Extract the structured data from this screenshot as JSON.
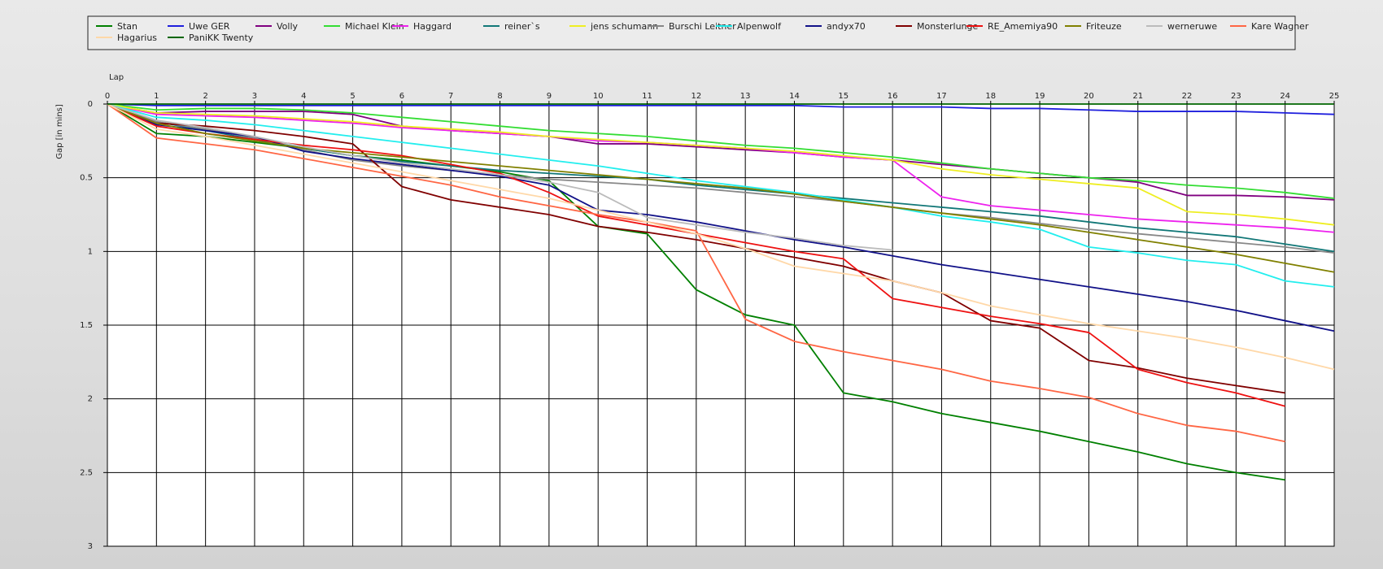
{
  "chart_data": {
    "type": "line",
    "title": "",
    "xlabel": "Lap",
    "ylabel": "Gap [in mins]",
    "xlim": [
      0,
      25
    ],
    "ylim": [
      0,
      3
    ],
    "y_inverted": true,
    "grid": true,
    "legend_position": "top",
    "x_ticks": [
      "0",
      "1",
      "2",
      "3",
      "4",
      "5",
      "6",
      "7",
      "8",
      "9",
      "10",
      "11",
      "12",
      "13",
      "14",
      "15",
      "16",
      "17",
      "18",
      "19",
      "20",
      "21",
      "22",
      "23",
      "24",
      "25"
    ],
    "y_ticks": [
      "0",
      "0.5",
      "1",
      "1.5",
      "2",
      "2.5",
      "3"
    ],
    "x": [
      0,
      1,
      2,
      3,
      4,
      5,
      6,
      7,
      8,
      9,
      10,
      11,
      12,
      13,
      14,
      15,
      16,
      17,
      18,
      19,
      20,
      21,
      22,
      23,
      24,
      25
    ],
    "series": [
      {
        "name": "Stan",
        "color": "#008000",
        "values": [
          0,
          0.2,
          0.22,
          0.26,
          0.3,
          0.35,
          0.38,
          0.42,
          0.46,
          0.52,
          0.83,
          0.88,
          1.26,
          1.43,
          1.5,
          1.96,
          2.02,
          2.1,
          2.16,
          2.22,
          2.29,
          2.36,
          2.44,
          2.5,
          2.55,
          null
        ]
      },
      {
        "name": "Uwe GER",
        "color": "#1f1fdd",
        "values": [
          0,
          0.01,
          0.01,
          0.01,
          0.01,
          0.01,
          0.01,
          0.01,
          0.01,
          0.01,
          0.01,
          0.01,
          0.01,
          0.01,
          0.01,
          0.02,
          0.02,
          0.02,
          0.03,
          0.03,
          0.04,
          0.05,
          0.05,
          0.05,
          0.06,
          0.07
        ]
      },
      {
        "name": "Volly",
        "color": "#800080",
        "values": [
          0,
          0.06,
          0.05,
          0.05,
          0.05,
          0.07,
          0.15,
          0.18,
          0.2,
          0.22,
          0.27,
          0.27,
          0.29,
          0.31,
          0.33,
          0.36,
          0.38,
          0.41,
          0.44,
          0.47,
          0.5,
          0.53,
          0.62,
          0.62,
          0.63,
          0.65
        ]
      },
      {
        "name": "Michael Klein",
        "color": "#33dd33",
        "values": [
          0,
          0.04,
          0.03,
          0.03,
          0.04,
          0.06,
          0.09,
          0.12,
          0.15,
          0.18,
          0.2,
          0.22,
          0.25,
          0.28,
          0.3,
          0.33,
          0.36,
          0.4,
          0.44,
          0.47,
          0.5,
          0.52,
          0.55,
          0.57,
          0.6,
          0.64
        ]
      },
      {
        "name": "Haggard",
        "color": "#ee22ee",
        "values": [
          0,
          0.07,
          0.08,
          0.09,
          0.11,
          0.13,
          0.16,
          0.18,
          0.2,
          0.22,
          0.25,
          0.26,
          0.28,
          0.3,
          0.33,
          0.36,
          0.38,
          0.63,
          0.69,
          0.72,
          0.75,
          0.78,
          0.8,
          0.82,
          0.84,
          0.87
        ]
      },
      {
        "name": "reiner`s",
        "color": "#117777",
        "values": [
          0,
          0.12,
          0.18,
          0.24,
          0.3,
          0.35,
          0.39,
          0.42,
          0.45,
          0.47,
          0.49,
          0.51,
          0.55,
          0.58,
          0.61,
          0.64,
          0.67,
          0.7,
          0.73,
          0.76,
          0.8,
          0.84,
          0.87,
          0.9,
          0.95,
          1.0
        ]
      },
      {
        "name": "jens  schumann",
        "color": "#eeee22",
        "values": [
          0,
          0.06,
          0.07,
          0.08,
          0.1,
          0.12,
          0.15,
          0.17,
          0.19,
          0.22,
          0.24,
          0.26,
          0.28,
          0.3,
          0.32,
          0.35,
          0.38,
          0.44,
          0.48,
          0.51,
          0.54,
          0.57,
          0.73,
          0.75,
          0.78,
          0.82
        ]
      },
      {
        "name": "Burschi Leitner",
        "color": "#888888",
        "values": [
          0,
          0.12,
          0.17,
          0.23,
          0.31,
          0.38,
          0.42,
          0.45,
          0.48,
          0.51,
          0.53,
          0.55,
          0.57,
          0.6,
          0.63,
          0.66,
          0.7,
          0.74,
          0.77,
          0.81,
          0.85,
          0.88,
          0.91,
          0.94,
          0.97,
          1.01
        ]
      },
      {
        "name": "Alpenwolf",
        "color": "#22eeee",
        "values": [
          0,
          0.09,
          0.11,
          0.14,
          0.18,
          0.22,
          0.26,
          0.3,
          0.34,
          0.38,
          0.42,
          0.47,
          0.52,
          0.56,
          0.6,
          0.65,
          0.7,
          0.76,
          0.8,
          0.85,
          0.97,
          1.01,
          1.06,
          1.09,
          1.2,
          1.24
        ]
      },
      {
        "name": "andyx70",
        "color": "#111188",
        "values": [
          0,
          0.14,
          0.18,
          0.22,
          0.32,
          0.37,
          0.41,
          0.45,
          0.49,
          0.55,
          0.72,
          0.75,
          0.8,
          0.86,
          0.92,
          0.97,
          1.03,
          1.09,
          1.14,
          1.19,
          1.24,
          1.29,
          1.34,
          1.4,
          1.47,
          1.54
        ]
      },
      {
        "name": "Monsterlunge",
        "color": "#800000",
        "values": [
          0,
          0.13,
          0.15,
          0.18,
          0.22,
          0.27,
          0.56,
          0.65,
          0.7,
          0.75,
          0.83,
          0.87,
          0.92,
          0.98,
          1.04,
          1.1,
          1.2,
          1.28,
          1.47,
          1.52,
          1.74,
          1.79,
          1.86,
          1.91,
          1.96,
          null
        ]
      },
      {
        "name": "RE_Amemiya90",
        "color": "#ee1111",
        "values": [
          0,
          0.15,
          0.2,
          0.24,
          0.28,
          0.31,
          0.35,
          0.41,
          0.47,
          0.6,
          0.76,
          0.82,
          0.88,
          0.94,
          1.0,
          1.05,
          1.32,
          1.38,
          1.44,
          1.49,
          1.55,
          1.8,
          1.89,
          1.96,
          2.05,
          null
        ]
      },
      {
        "name": "Friteuze",
        "color": "#808000",
        "values": [
          0,
          0.13,
          0.2,
          0.25,
          0.3,
          0.33,
          0.36,
          0.39,
          0.42,
          0.45,
          0.48,
          0.51,
          0.54,
          0.57,
          0.61,
          0.66,
          0.7,
          0.74,
          0.78,
          0.82,
          0.87,
          0.92,
          0.97,
          1.02,
          1.08,
          1.14
        ]
      },
      {
        "name": "werneruwe",
        "color": "#bbbbbb",
        "values": [
          0,
          0.11,
          0.16,
          0.22,
          0.29,
          0.35,
          0.4,
          0.44,
          0.48,
          0.53,
          0.6,
          0.77,
          0.82,
          0.87,
          0.91,
          0.96,
          0.99,
          null,
          null,
          null,
          null,
          null,
          null,
          null,
          null,
          null
        ]
      },
      {
        "name": "Kare Wagner",
        "color": "#ff6644",
        "values": [
          0,
          0.23,
          0.27,
          0.31,
          0.37,
          0.43,
          0.49,
          0.55,
          0.63,
          0.69,
          0.75,
          0.8,
          0.86,
          1.46,
          1.61,
          1.68,
          1.74,
          1.8,
          1.88,
          1.93,
          1.99,
          2.1,
          2.18,
          2.22,
          2.29,
          null
        ]
      },
      {
        "name": "Hagarius",
        "color": "#ffd8a8",
        "values": [
          0,
          0.17,
          0.22,
          0.28,
          0.34,
          0.4,
          0.46,
          0.52,
          0.58,
          0.64,
          0.72,
          0.8,
          0.88,
          0.98,
          1.1,
          1.15,
          1.2,
          1.28,
          1.37,
          1.43,
          1.49,
          1.54,
          1.59,
          1.65,
          1.72,
          1.8
        ]
      },
      {
        "name": "PaniKK Twenty",
        "color": "#006600",
        "values": [
          0,
          0,
          0,
          0,
          0,
          0,
          0,
          0,
          0,
          0,
          0,
          0,
          0,
          0,
          0,
          0,
          0,
          0,
          0,
          0,
          0,
          0,
          0,
          0,
          0,
          0
        ]
      }
    ]
  }
}
